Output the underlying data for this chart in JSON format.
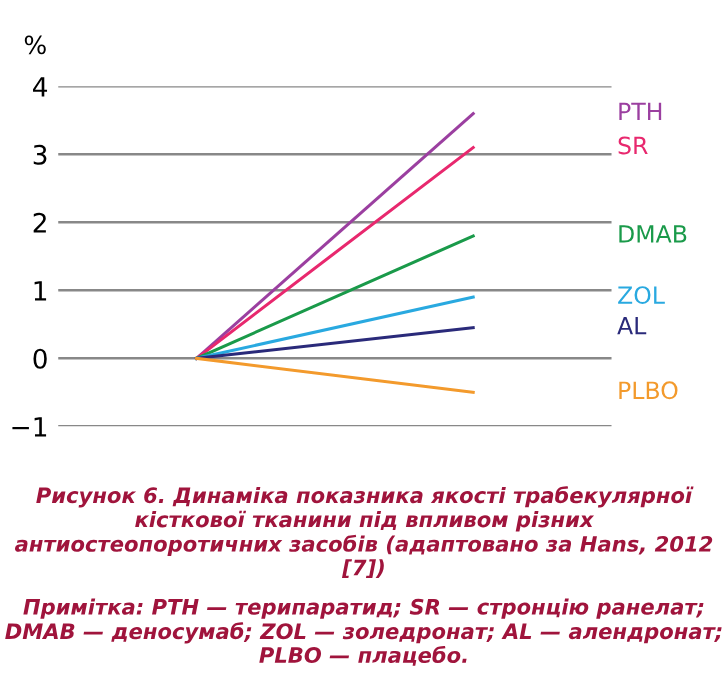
{
  "chart_data": {
    "type": "line",
    "title": "Рисунок 6. Динаміка показника якості трабекулярної кісткової тканини під впливом різних антиостеопоротичних засобів (адаптовано за Hans, 2012 [7])",
    "ylabel": "%",
    "categories": [
      null,
      null
    ],
    "series": [
      {
        "name": "PTH",
        "color": "#9b3fa0",
        "values": [
          0,
          3.6
        ]
      },
      {
        "name": "SR",
        "color": "#e8286e",
        "values": [
          0,
          3.1
        ]
      },
      {
        "name": "DMAB",
        "color": "#1a9a4a",
        "values": [
          0,
          1.8
        ]
      },
      {
        "name": "ZOL",
        "color": "#29a9e0",
        "values": [
          0,
          0.9
        ]
      },
      {
        "name": "AL",
        "color": "#2a2a7a",
        "values": [
          0,
          0.45
        ]
      },
      {
        "name": "PLBO",
        "color": "#f39a2c",
        "values": [
          0,
          -0.5
        ]
      }
    ],
    "ylim": [
      -1,
      4
    ],
    "yticks": [
      {
        "value": -1,
        "label": "−1"
      },
      0,
      1,
      2,
      3,
      4
    ],
    "grid": "y",
    "legend": false,
    "annotations": [
      "Примітка: PTH — терипаратид; SR — стронцію ранелат; DMAB — деносумаб; ZOL — золедронат; AL — алендронат; PLBO — плацебо."
    ]
  }
}
